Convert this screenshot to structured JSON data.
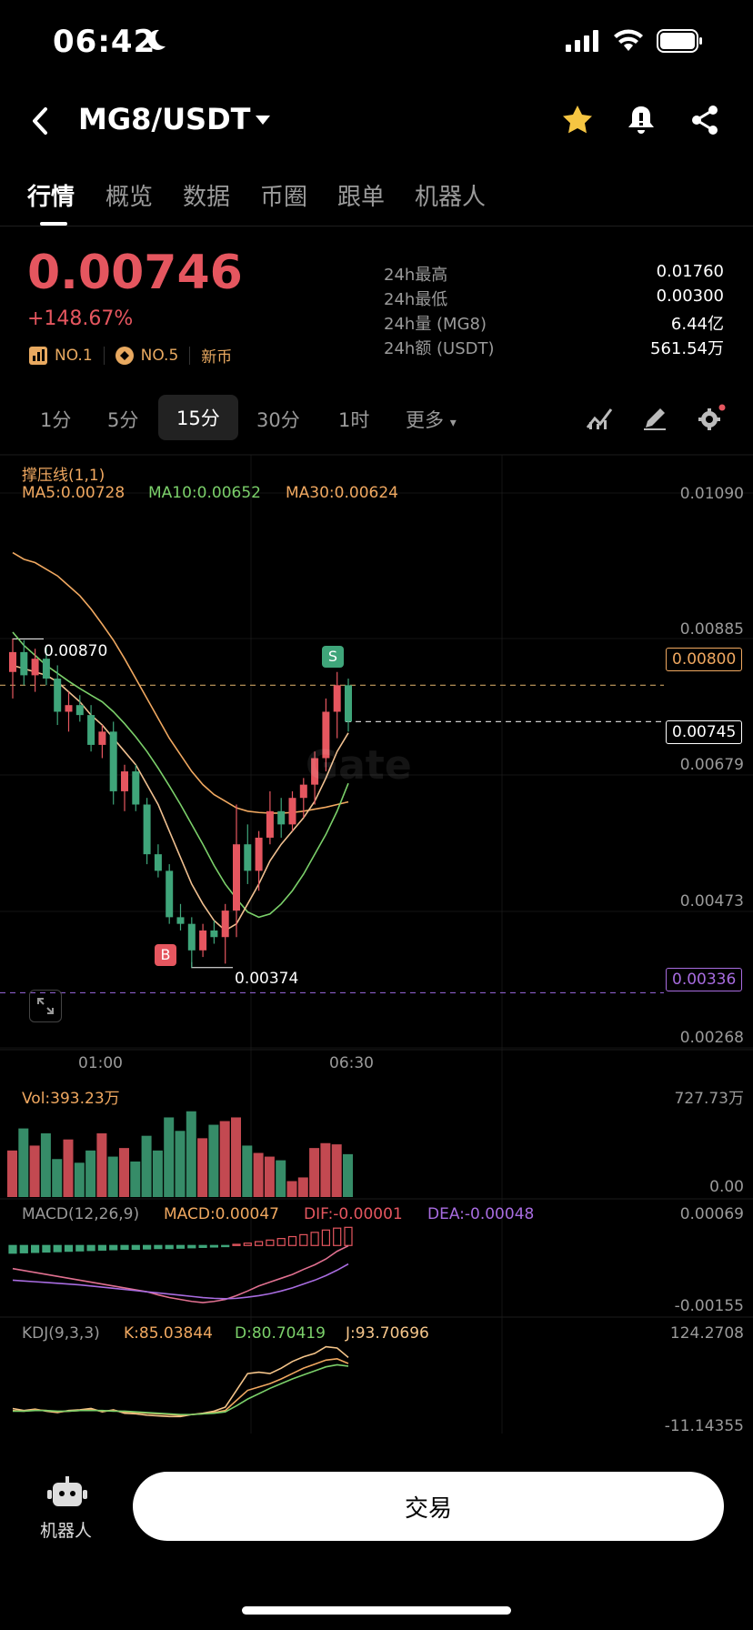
{
  "status": {
    "time": "06:42"
  },
  "header": {
    "pair": "MG8/USDT"
  },
  "tabs": [
    {
      "label": "行情"
    },
    {
      "label": "概览"
    },
    {
      "label": "数据"
    },
    {
      "label": "币圈"
    },
    {
      "label": "跟单"
    },
    {
      "label": "机器人"
    }
  ],
  "ticker": {
    "price": "0.00746",
    "change": "+148.67%",
    "badge1": "NO.1",
    "badge2": "NO.5",
    "badge3": "新币",
    "stats": [
      {
        "label": "24h最高",
        "value": "0.01760"
      },
      {
        "label": "24h最低",
        "value": "0.00300"
      },
      {
        "label": "24h量 (MG8)",
        "value": "6.44亿"
      },
      {
        "label": "24h额 (USDT)",
        "value": "561.54万"
      }
    ]
  },
  "timeframes": [
    {
      "label": "1分"
    },
    {
      "label": "5分"
    },
    {
      "label": "15分"
    },
    {
      "label": "30分"
    },
    {
      "label": "1时"
    },
    {
      "label": "更多"
    }
  ],
  "main_chart": {
    "indicator_title": "撑压线(1,1)",
    "ma5": "MA5:0.00728",
    "ma10": "MA10:0.00652",
    "ma30": "MA30:0.00624",
    "y_ticks": [
      "0.01090",
      "0.00885",
      "0.00679",
      "0.00473",
      "0.00268"
    ],
    "resistance_tag": "0.00800",
    "current_tag": "0.00745",
    "support_tag": "0.00336",
    "high_label": "0.00870",
    "low_label": "0.00374",
    "sell_marker": "S",
    "buy_marker": "B",
    "x_ticks": [
      "01:00",
      "06:30"
    ],
    "watermark": "Gate"
  },
  "vol_chart": {
    "label": "Vol:393.23万",
    "y_top": "727.73万",
    "y_bottom": "0.00"
  },
  "macd_chart": {
    "title": "MACD(12,26,9)",
    "macd": "MACD:0.00047",
    "dif": "DIF:-0.00001",
    "dea": "DEA:-0.00048",
    "y_top": "0.00069",
    "y_bottom": "-0.00155"
  },
  "kdj_chart": {
    "title": "KDJ(9,3,3)",
    "k": "K:85.03844",
    "d": "D:80.70419",
    "j": "J:93.70696",
    "y_top": "124.2708",
    "y_bottom": "-11.14355"
  },
  "bottom": {
    "robot_label": "机器人",
    "trade_label": "交易"
  },
  "colors": {
    "up": "#e5565f",
    "down": "#3fa57a",
    "ma5": "#f0a860",
    "ma10": "#7bd06a",
    "ma30": "#f0a860",
    "accent": "#f5c542"
  },
  "chart_data": {
    "type": "candlestick",
    "candles": [
      {
        "o": 0.0082,
        "h": 0.0087,
        "l": 0.0078,
        "c": 0.0085
      },
      {
        "o": 0.0085,
        "h": 0.00868,
        "l": 0.008,
        "c": 0.00815
      },
      {
        "o": 0.00815,
        "h": 0.00855,
        "l": 0.0079,
        "c": 0.0084
      },
      {
        "o": 0.0084,
        "h": 0.0086,
        "l": 0.008,
        "c": 0.0081
      },
      {
        "o": 0.0081,
        "h": 0.0083,
        "l": 0.0074,
        "c": 0.0076
      },
      {
        "o": 0.0076,
        "h": 0.0079,
        "l": 0.0073,
        "c": 0.0077
      },
      {
        "o": 0.0077,
        "h": 0.00785,
        "l": 0.00745,
        "c": 0.00755
      },
      {
        "o": 0.00755,
        "h": 0.0077,
        "l": 0.007,
        "c": 0.0071
      },
      {
        "o": 0.0071,
        "h": 0.0074,
        "l": 0.0069,
        "c": 0.0073
      },
      {
        "o": 0.0073,
        "h": 0.00745,
        "l": 0.0062,
        "c": 0.0064
      },
      {
        "o": 0.0064,
        "h": 0.0068,
        "l": 0.0061,
        "c": 0.0067
      },
      {
        "o": 0.0067,
        "h": 0.0068,
        "l": 0.0061,
        "c": 0.0062
      },
      {
        "o": 0.0062,
        "h": 0.0063,
        "l": 0.0053,
        "c": 0.00545
      },
      {
        "o": 0.00545,
        "h": 0.0056,
        "l": 0.0051,
        "c": 0.0052
      },
      {
        "o": 0.0052,
        "h": 0.0053,
        "l": 0.0044,
        "c": 0.0045
      },
      {
        "o": 0.0045,
        "h": 0.0047,
        "l": 0.0043,
        "c": 0.0044
      },
      {
        "o": 0.0044,
        "h": 0.0045,
        "l": 0.00374,
        "c": 0.004
      },
      {
        "o": 0.004,
        "h": 0.0044,
        "l": 0.0039,
        "c": 0.0043
      },
      {
        "o": 0.0043,
        "h": 0.00445,
        "l": 0.0041,
        "c": 0.0042
      },
      {
        "o": 0.0042,
        "h": 0.0047,
        "l": 0.0038,
        "c": 0.0046
      },
      {
        "o": 0.0046,
        "h": 0.0062,
        "l": 0.0042,
        "c": 0.0056
      },
      {
        "o": 0.0056,
        "h": 0.0059,
        "l": 0.005,
        "c": 0.0052
      },
      {
        "o": 0.0052,
        "h": 0.0058,
        "l": 0.0049,
        "c": 0.0057
      },
      {
        "o": 0.0057,
        "h": 0.0064,
        "l": 0.0056,
        "c": 0.0061
      },
      {
        "o": 0.0061,
        "h": 0.0063,
        "l": 0.0057,
        "c": 0.0059
      },
      {
        "o": 0.0059,
        "h": 0.0064,
        "l": 0.0058,
        "c": 0.0063
      },
      {
        "o": 0.0063,
        "h": 0.0066,
        "l": 0.006,
        "c": 0.0065
      },
      {
        "o": 0.0065,
        "h": 0.007,
        "l": 0.0062,
        "c": 0.0069
      },
      {
        "o": 0.0069,
        "h": 0.0078,
        "l": 0.0067,
        "c": 0.0076
      },
      {
        "o": 0.0076,
        "h": 0.0082,
        "l": 0.0072,
        "c": 0.008
      },
      {
        "o": 0.008,
        "h": 0.0081,
        "l": 0.0073,
        "c": 0.00745
      }
    ],
    "ma5": [
      0.0083,
      0.00825,
      0.0082,
      0.00815,
      0.00805,
      0.0079,
      0.00775,
      0.00755,
      0.0074,
      0.0072,
      0.007,
      0.0068,
      0.0065,
      0.0062,
      0.0058,
      0.0054,
      0.005,
      0.0047,
      0.00445,
      0.0043,
      0.0044,
      0.0047,
      0.005,
      0.00535,
      0.0056,
      0.0058,
      0.006,
      0.00625,
      0.0066,
      0.007,
      0.00728
    ],
    "ma10": [
      0.0088,
      0.0086,
      0.00845,
      0.0083,
      0.00818,
      0.00806,
      0.00795,
      0.00785,
      0.00775,
      0.0076,
      0.00742,
      0.00722,
      0.007,
      0.00675,
      0.00648,
      0.0062,
      0.0059,
      0.0056,
      0.00528,
      0.005,
      0.00478,
      0.00458,
      0.0045,
      0.00455,
      0.0047,
      0.0049,
      0.00515,
      0.00545,
      0.00575,
      0.0061,
      0.00652
    ],
    "ma30": [
      0.01,
      0.0099,
      0.00985,
      0.00975,
      0.00965,
      0.0095,
      0.00935,
      0.00915,
      0.00892,
      0.00868,
      0.0084,
      0.0081,
      0.0078,
      0.0075,
      0.0072,
      0.00695,
      0.0067,
      0.0065,
      0.00635,
      0.00625,
      0.00615,
      0.0061,
      0.00608,
      0.00607,
      0.00607,
      0.00608,
      0.0061,
      0.00613,
      0.00616,
      0.0062,
      0.00624
    ],
    "volume": [
      380,
      560,
      420,
      520,
      310,
      470,
      280,
      380,
      520,
      330,
      400,
      290,
      500,
      380,
      650,
      540,
      700,
      480,
      590,
      620,
      650,
      420,
      360,
      330,
      300,
      130,
      160,
      400,
      440,
      430,
      350
    ],
    "macd_hist": [
      -0.0002,
      -0.00019,
      -0.00018,
      -0.00017,
      -0.00016,
      -0.00015,
      -0.00014,
      -0.00013,
      -0.00012,
      -0.00011,
      -0.0001,
      -0.0001,
      -9e-05,
      -8e-05,
      -8e-05,
      -7e-05,
      -6e-05,
      -5e-05,
      -4e-05,
      -3e-05,
      3e-05,
      6e-05,
      0.0001,
      0.00014,
      0.00018,
      0.00023,
      0.00028,
      0.00034,
      0.0004,
      0.00045,
      0.00047
    ],
    "dif": [
      -0.0006,
      -0.00065,
      -0.0007,
      -0.00075,
      -0.0008,
      -0.00085,
      -0.0009,
      -0.00095,
      -0.001,
      -0.00105,
      -0.0011,
      -0.00115,
      -0.0012,
      -0.00128,
      -0.00135,
      -0.0014,
      -0.00145,
      -0.00148,
      -0.00145,
      -0.0014,
      -0.0013,
      -0.00118,
      -0.00105,
      -0.00095,
      -0.00085,
      -0.00075,
      -0.00062,
      -0.0005,
      -0.00035,
      -0.00015,
      -1e-05
    ],
    "dea": [
      -0.0009,
      -0.00092,
      -0.00094,
      -0.00096,
      -0.00098,
      -0.001,
      -0.00102,
      -0.00105,
      -0.00108,
      -0.00111,
      -0.00114,
      -0.00117,
      -0.0012,
      -0.00123,
      -0.00126,
      -0.00129,
      -0.00132,
      -0.00135,
      -0.00137,
      -0.00138,
      -0.00137,
      -0.00134,
      -0.0013,
      -0.00125,
      -0.00118,
      -0.0011,
      -0.001,
      -0.0009,
      -0.00078,
      -0.00064,
      -0.00048
    ],
    "k": [
      15,
      14,
      16,
      15,
      13,
      14,
      15,
      16,
      14,
      15,
      13,
      12,
      11,
      10,
      9,
      8,
      9,
      10,
      12,
      15,
      30,
      45,
      50,
      55,
      62,
      70,
      78,
      84,
      90,
      92,
      85
    ],
    "d": [
      14,
      14,
      15,
      15,
      14,
      14,
      15,
      15,
      15,
      14,
      14,
      13,
      12,
      11,
      10,
      9,
      9,
      10,
      11,
      13,
      22,
      32,
      40,
      48,
      55,
      62,
      68,
      74,
      80,
      83,
      81
    ],
    "j": [
      18,
      15,
      17,
      14,
      12,
      15,
      16,
      18,
      13,
      16,
      11,
      10,
      8,
      7,
      6,
      6,
      9,
      11,
      14,
      20,
      45,
      70,
      72,
      70,
      78,
      88,
      95,
      100,
      110,
      108,
      94
    ]
  }
}
